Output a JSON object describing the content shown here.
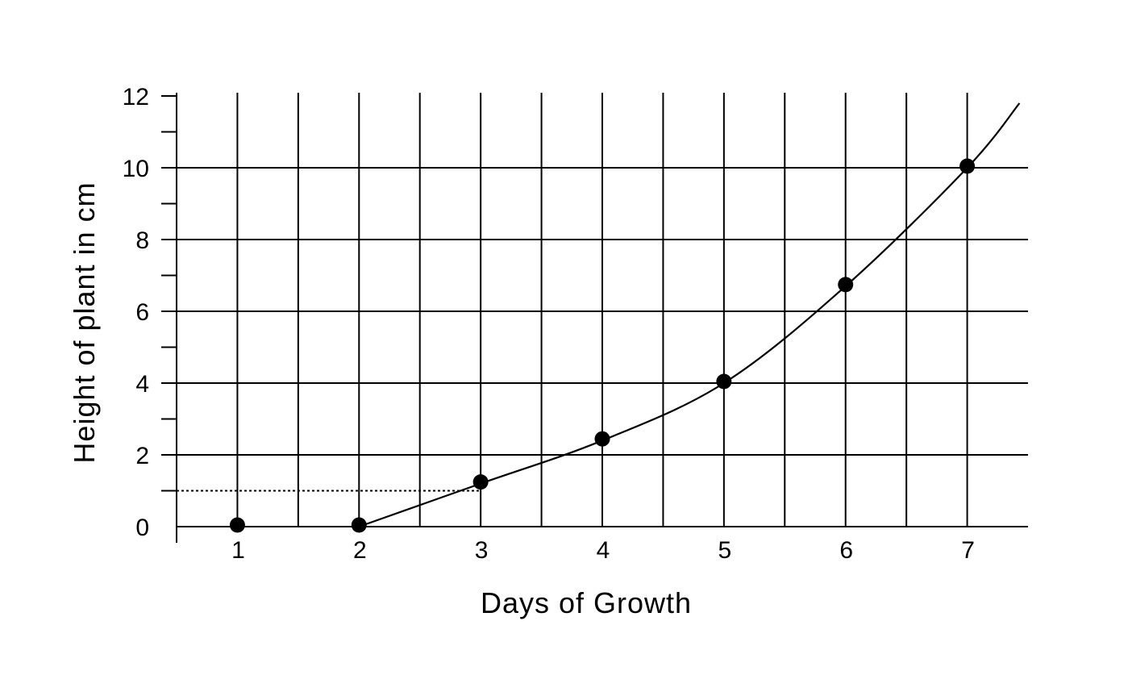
{
  "chart_data": {
    "type": "line",
    "title": "",
    "xlabel": "Days of Growth",
    "ylabel": "Height of plant in cm",
    "x_ticks": [
      1,
      2,
      3,
      4,
      5,
      6,
      7
    ],
    "y_ticks": [
      0,
      2,
      4,
      6,
      8,
      10,
      12
    ],
    "xlim": [
      0.5,
      7.5
    ],
    "ylim": [
      0,
      12
    ],
    "grid": true,
    "points": [
      {
        "x": 1,
        "y": 0
      },
      {
        "x": 2,
        "y": 0
      },
      {
        "x": 3,
        "y": 1.2
      },
      {
        "x": 4,
        "y": 2.4
      },
      {
        "x": 5,
        "y": 4.0
      },
      {
        "x": 6,
        "y": 6.7
      },
      {
        "x": 7,
        "y": 10.0
      }
    ],
    "curve": [
      {
        "x": 2,
        "y": 0
      },
      {
        "x": 3,
        "y": 1.2
      },
      {
        "x": 4,
        "y": 2.4
      },
      {
        "x": 5,
        "y": 4.0
      },
      {
        "x": 6,
        "y": 6.7
      },
      {
        "x": 7,
        "y": 10.0
      },
      {
        "x": 7.43,
        "y": 11.8
      }
    ],
    "reference_line": {
      "y": 1.0,
      "x_from": 0.5,
      "x_to": 3
    },
    "colors": {
      "line": "#000000",
      "grid": "#000000",
      "marker": "#000000"
    }
  }
}
